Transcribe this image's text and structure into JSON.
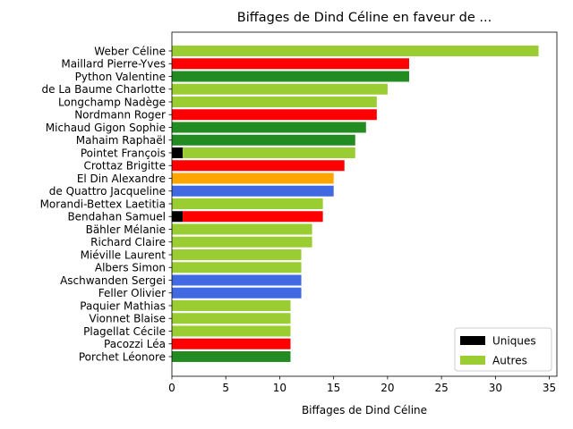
{
  "chart_data": {
    "type": "bar",
    "orientation": "horizontal",
    "stacked": true,
    "title": "Biffages de Dind Céline en faveur de ...",
    "xlabel": "Biffages de Dind Céline",
    "ylabel": "",
    "xlim": [
      0,
      35.7
    ],
    "xticks": [
      0,
      5,
      10,
      15,
      20,
      25,
      30,
      35
    ],
    "grid": false,
    "legend": {
      "placement": "lower-right",
      "entries": [
        {
          "label": "Uniques",
          "color": "#000000"
        },
        {
          "label": "Autres",
          "color": "#9acd32"
        }
      ]
    },
    "categories": [
      "Weber Céline",
      "Maillard Pierre-Yves",
      "Python Valentine",
      "de La Baume Charlotte",
      "Longchamp Nadège",
      "Nordmann Roger",
      "Michaud Gigon Sophie",
      "Mahaim Raphaël",
      "Pointet François",
      "Crottaz Brigitte",
      "El Din Alexandre",
      "de Quattro Jacqueline",
      "Morandi-Bettex Laetitia",
      "Bendahan Samuel",
      "Bähler Mélanie",
      "Richard Claire",
      "Miéville Laurent",
      "Albers Simon",
      "Aschwanden Sergei",
      "Feller Olivier",
      "Paquier Mathias",
      "Vionnet Blaise",
      "Plagellat Cécile",
      "Pacozzi Léa",
      "Porchet Léonore"
    ],
    "series": [
      {
        "name": "Uniques",
        "values": [
          0,
          0,
          0,
          0,
          0,
          0,
          0,
          0,
          1,
          0,
          0,
          0,
          0,
          1,
          0,
          0,
          0,
          0,
          0,
          0,
          0,
          0,
          0,
          0,
          0
        ]
      },
      {
        "name": "Autres",
        "values": [
          34,
          22,
          22,
          20,
          19,
          19,
          18,
          17,
          16,
          16,
          15,
          15,
          14,
          13,
          13,
          13,
          12,
          12,
          12,
          12,
          11,
          11,
          11,
          11,
          11
        ]
      }
    ],
    "bar_colors": [
      "#9acd32",
      "#ff0000",
      "#228b22",
      "#9acd32",
      "#9acd32",
      "#ff0000",
      "#228b22",
      "#228b22",
      "#9acd32",
      "#ff0000",
      "#ffa500",
      "#4169e1",
      "#9acd32",
      "#ff0000",
      "#9acd32",
      "#9acd32",
      "#9acd32",
      "#9acd32",
      "#4169e1",
      "#4169e1",
      "#9acd32",
      "#9acd32",
      "#9acd32",
      "#ff0000",
      "#228b22"
    ],
    "uniques_color": "#000000"
  }
}
